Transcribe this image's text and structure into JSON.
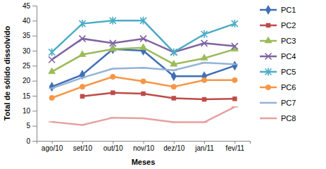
{
  "chart_data": {
    "type": "line",
    "x_label": "Meses",
    "y_label": "Total de sólido dissolvido",
    "categories": [
      "ago/10",
      "set/10",
      "out/10",
      "nov/10",
      "dez/10",
      "jan/11",
      "fev/11"
    ],
    "ylim": [
      0,
      45
    ],
    "yticks": [
      0,
      5,
      10,
      15,
      20,
      25,
      30,
      35,
      40,
      45
    ],
    "grid": false,
    "legend": "right",
    "series": [
      {
        "name": "PC1",
        "color": "#3f6fb5",
        "marker": "diamond",
        "values": [
          18,
          22,
          30.5,
          30,
          21.5,
          21.5,
          25
        ]
      },
      {
        "name": "PC2",
        "color": "#be4b48",
        "marker": "square",
        "values": [
          null,
          14.8,
          16,
          15.7,
          14.2,
          13.8,
          14
        ]
      },
      {
        "name": "PC3",
        "color": "#9bbb59",
        "marker": "triangle",
        "values": [
          23,
          28.7,
          30.5,
          31,
          25.5,
          27.5,
          30.5
        ]
      },
      {
        "name": "PC4",
        "color": "#7f63a1",
        "marker": "x",
        "values": [
          27,
          34,
          32.5,
          34,
          29.5,
          32.5,
          31.5
        ]
      },
      {
        "name": "PC5",
        "color": "#4bacc6",
        "marker": "asterisk",
        "values": [
          29.5,
          39,
          40,
          40,
          29.5,
          35.5,
          39
        ]
      },
      {
        "name": "PC6",
        "color": "#f79646",
        "marker": "circle",
        "values": [
          14.3,
          18,
          21.3,
          19.8,
          18,
          20.2,
          20.2
        ]
      },
      {
        "name": "PC7",
        "color": "#95b3d7",
        "marker": "dash",
        "values": [
          17.5,
          21,
          24,
          24.3,
          23.5,
          26,
          25.5
        ]
      },
      {
        "name": "PC8",
        "color": "#e6a0a0",
        "marker": "dash",
        "values": [
          6.3,
          5.3,
          7.7,
          7.5,
          6.2,
          6.2,
          11.3
        ]
      }
    ]
  }
}
